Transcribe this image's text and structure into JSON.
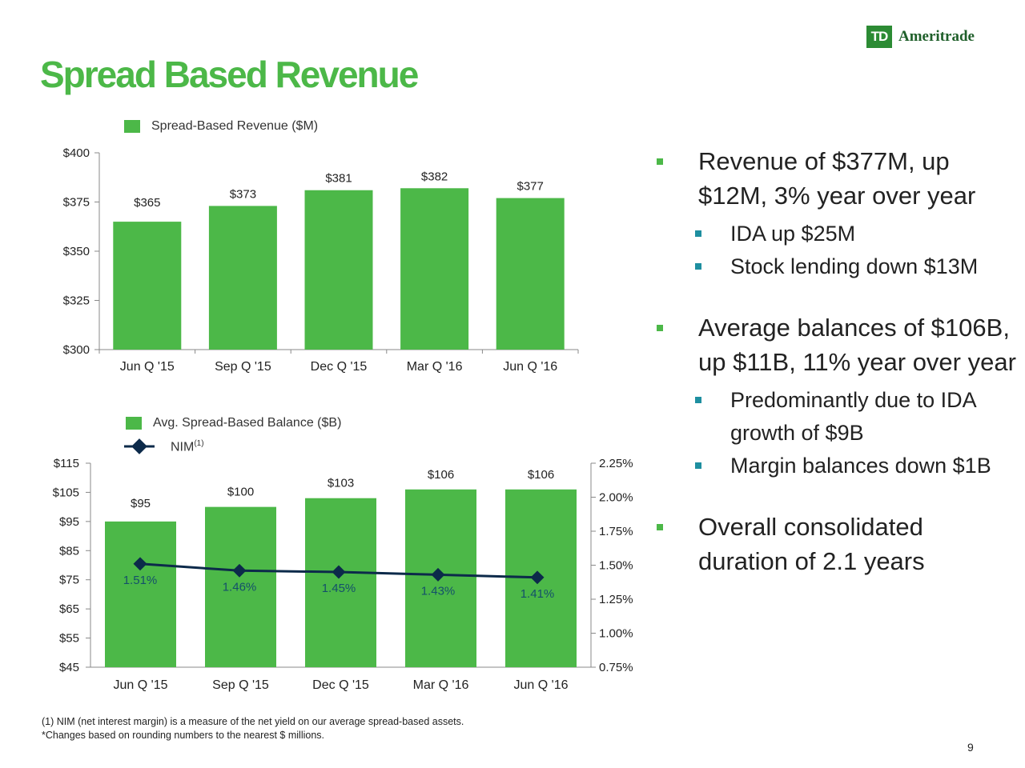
{
  "title": "Spread Based Revenue",
  "logo": {
    "mark": "TD",
    "text": "Ameritrade"
  },
  "colors": {
    "brand_green": "#4cb848",
    "bar": "#4cb848",
    "line": "#0c2a4a",
    "sub_bullet": "#1e8fa0"
  },
  "chart_data": [
    {
      "type": "bar",
      "title": "",
      "legend": [
        "Spread-Based Revenue ($M)"
      ],
      "legend_position": "top",
      "categories": [
        "Jun Q '15",
        "Sep Q '15",
        "Dec Q '15",
        "Mar Q '16",
        "Jun Q '16"
      ],
      "values": [
        365,
        373,
        381,
        382,
        377
      ],
      "data_labels": [
        "$365",
        "$373",
        "$381",
        "$382",
        "$377"
      ],
      "ylim": [
        300,
        400
      ],
      "yticks": [
        "$300",
        "$325",
        "$350",
        "$375",
        "$400"
      ],
      "xlabel": "",
      "ylabel": "",
      "grid": false
    },
    {
      "type": "bar",
      "title": "",
      "legend": [
        "Avg. Spread-Based Balance ($B)",
        "NIM",
        "(1)"
      ],
      "legend_position": "top",
      "categories": [
        "Jun Q '15",
        "Sep Q '15",
        "Dec Q '15",
        "Mar Q '16",
        "Jun Q '16"
      ],
      "series": [
        {
          "name": "Avg. Spread-Based Balance ($B)",
          "type": "bar",
          "axis": "left",
          "values": [
            95,
            100,
            103,
            106,
            106
          ],
          "data_labels": [
            "$95",
            "$100",
            "$103",
            "$106",
            "$106"
          ]
        },
        {
          "name": "NIM",
          "type": "line",
          "axis": "right",
          "values": [
            1.51,
            1.46,
            1.45,
            1.43,
            1.41
          ],
          "data_labels": [
            "1.51%",
            "1.46%",
            "1.45%",
            "1.43%",
            "1.41%"
          ]
        }
      ],
      "ylim": [
        45,
        115
      ],
      "yticks": [
        "$45",
        "$55",
        "$65",
        "$75",
        "$85",
        "$95",
        "$105",
        "$115"
      ],
      "y2lim": [
        0.75,
        2.25
      ],
      "y2ticks": [
        "0.75%",
        "1.00%",
        "1.25%",
        "1.50%",
        "1.75%",
        "2.00%",
        "2.25%"
      ],
      "xlabel": "",
      "ylabel": "",
      "grid": false
    }
  ],
  "bullets": [
    {
      "level": 1,
      "text": "Revenue of $377M, up $12M, 3% year over year"
    },
    {
      "level": 2,
      "text": "IDA up $25M"
    },
    {
      "level": 2,
      "text": "Stock lending down $13M"
    },
    {
      "level": 0,
      "text": ""
    },
    {
      "level": 1,
      "text": "Average balances of $106B, up $11B, 11% year over year"
    },
    {
      "level": 2,
      "text": "Predominantly due to IDA growth of $9B"
    },
    {
      "level": 2,
      "text": "Margin balances down $1B"
    },
    {
      "level": 0,
      "text": ""
    },
    {
      "level": 1,
      "text": "Overall consolidated duration of 2.1 years"
    }
  ],
  "footnotes": [
    "(1)  NIM (net interest margin) is a measure of the net yield on our average spread-based assets.",
    "*Changes based on rounding numbers to the nearest $ millions."
  ],
  "page_number": "9"
}
